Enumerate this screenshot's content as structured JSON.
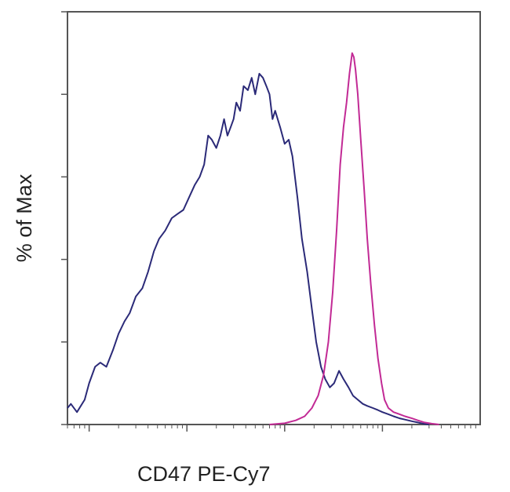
{
  "chart_data": {
    "type": "line",
    "title": "",
    "xlabel": "CD47 PE-Cy7",
    "ylabel": "% of Max",
    "x_scale": "log",
    "xlim": [
      0.6,
      10000
    ],
    "ylim": [
      0,
      100
    ],
    "x_major_ticks": [
      1,
      10,
      100,
      1000,
      10000
    ],
    "y_ticks": [
      0,
      20,
      40,
      60,
      80,
      100
    ],
    "tick_labels_visible": false,
    "grid": false,
    "legend": "none",
    "series": [
      {
        "color": "#2b2a78",
        "x": [
          0.6,
          0.65,
          0.75,
          0.9,
          1.0,
          1.15,
          1.3,
          1.5,
          1.75,
          2.0,
          2.3,
          2.6,
          3.0,
          3.5,
          4.0,
          4.6,
          5.2,
          6.0,
          7.0,
          8.0,
          9.2,
          10.5,
          12.0,
          13.5,
          15.0,
          16.5,
          18.0,
          20.0,
          22.0,
          24.0,
          26.0,
          28.0,
          30.0,
          32.0,
          35.0,
          38.0,
          42.0,
          46.0,
          50.0,
          55.0,
          60.0,
          65.0,
          70.0,
          75.0,
          80.0,
          90.0,
          100.0,
          110.0,
          120.0,
          135.0,
          150.0,
          170.0,
          190.0,
          210.0,
          235.0,
          260.0,
          290.0,
          320.0,
          360.0,
          400.0,
          450.0,
          500.0,
          560.0,
          630.0,
          700.0,
          800.0,
          900.0,
          1000.0,
          1150.0,
          1300.0,
          1500.0,
          1700.0,
          2000.0,
          2300.0,
          2600.0,
          3000.0
        ],
        "y": [
          4,
          5,
          3,
          6,
          10,
          14,
          15,
          14,
          18,
          22,
          25,
          27,
          31,
          33,
          37,
          42,
          45,
          47,
          50,
          51,
          52,
          55,
          58,
          60,
          63,
          70,
          69,
          67,
          70,
          74,
          70,
          72,
          74,
          78,
          76,
          82,
          81,
          84,
          80,
          85,
          84,
          82,
          80,
          74,
          76,
          72,
          68,
          69,
          65,
          55,
          45,
          37,
          28,
          20,
          14,
          11,
          9,
          10,
          13,
          11,
          9,
          7,
          6,
          5,
          4.5,
          4,
          3.5,
          3,
          2.5,
          2,
          1.5,
          1.2,
          0.8,
          0.5,
          0.2,
          0
        ]
      },
      {
        "color": "#c22a95",
        "x": [
          70,
          100,
          130,
          160,
          190,
          220,
          250,
          280,
          310,
          340,
          370,
          400,
          430,
          460,
          490,
          510,
          530,
          560,
          600,
          650,
          700,
          760,
          830,
          900,
          980,
          1050,
          1150,
          1300,
          1500,
          1700,
          2000,
          2300,
          2700,
          3200,
          3800
        ],
        "y": [
          0,
          0.3,
          1,
          2,
          4,
          7,
          12,
          20,
          32,
          47,
          63,
          72,
          78,
          85,
          90,
          89,
          86,
          80,
          69,
          57,
          45,
          34,
          24,
          16,
          10,
          6,
          4,
          3,
          2.5,
          2,
          1.5,
          1,
          0.5,
          0.2,
          0
        ]
      }
    ]
  }
}
